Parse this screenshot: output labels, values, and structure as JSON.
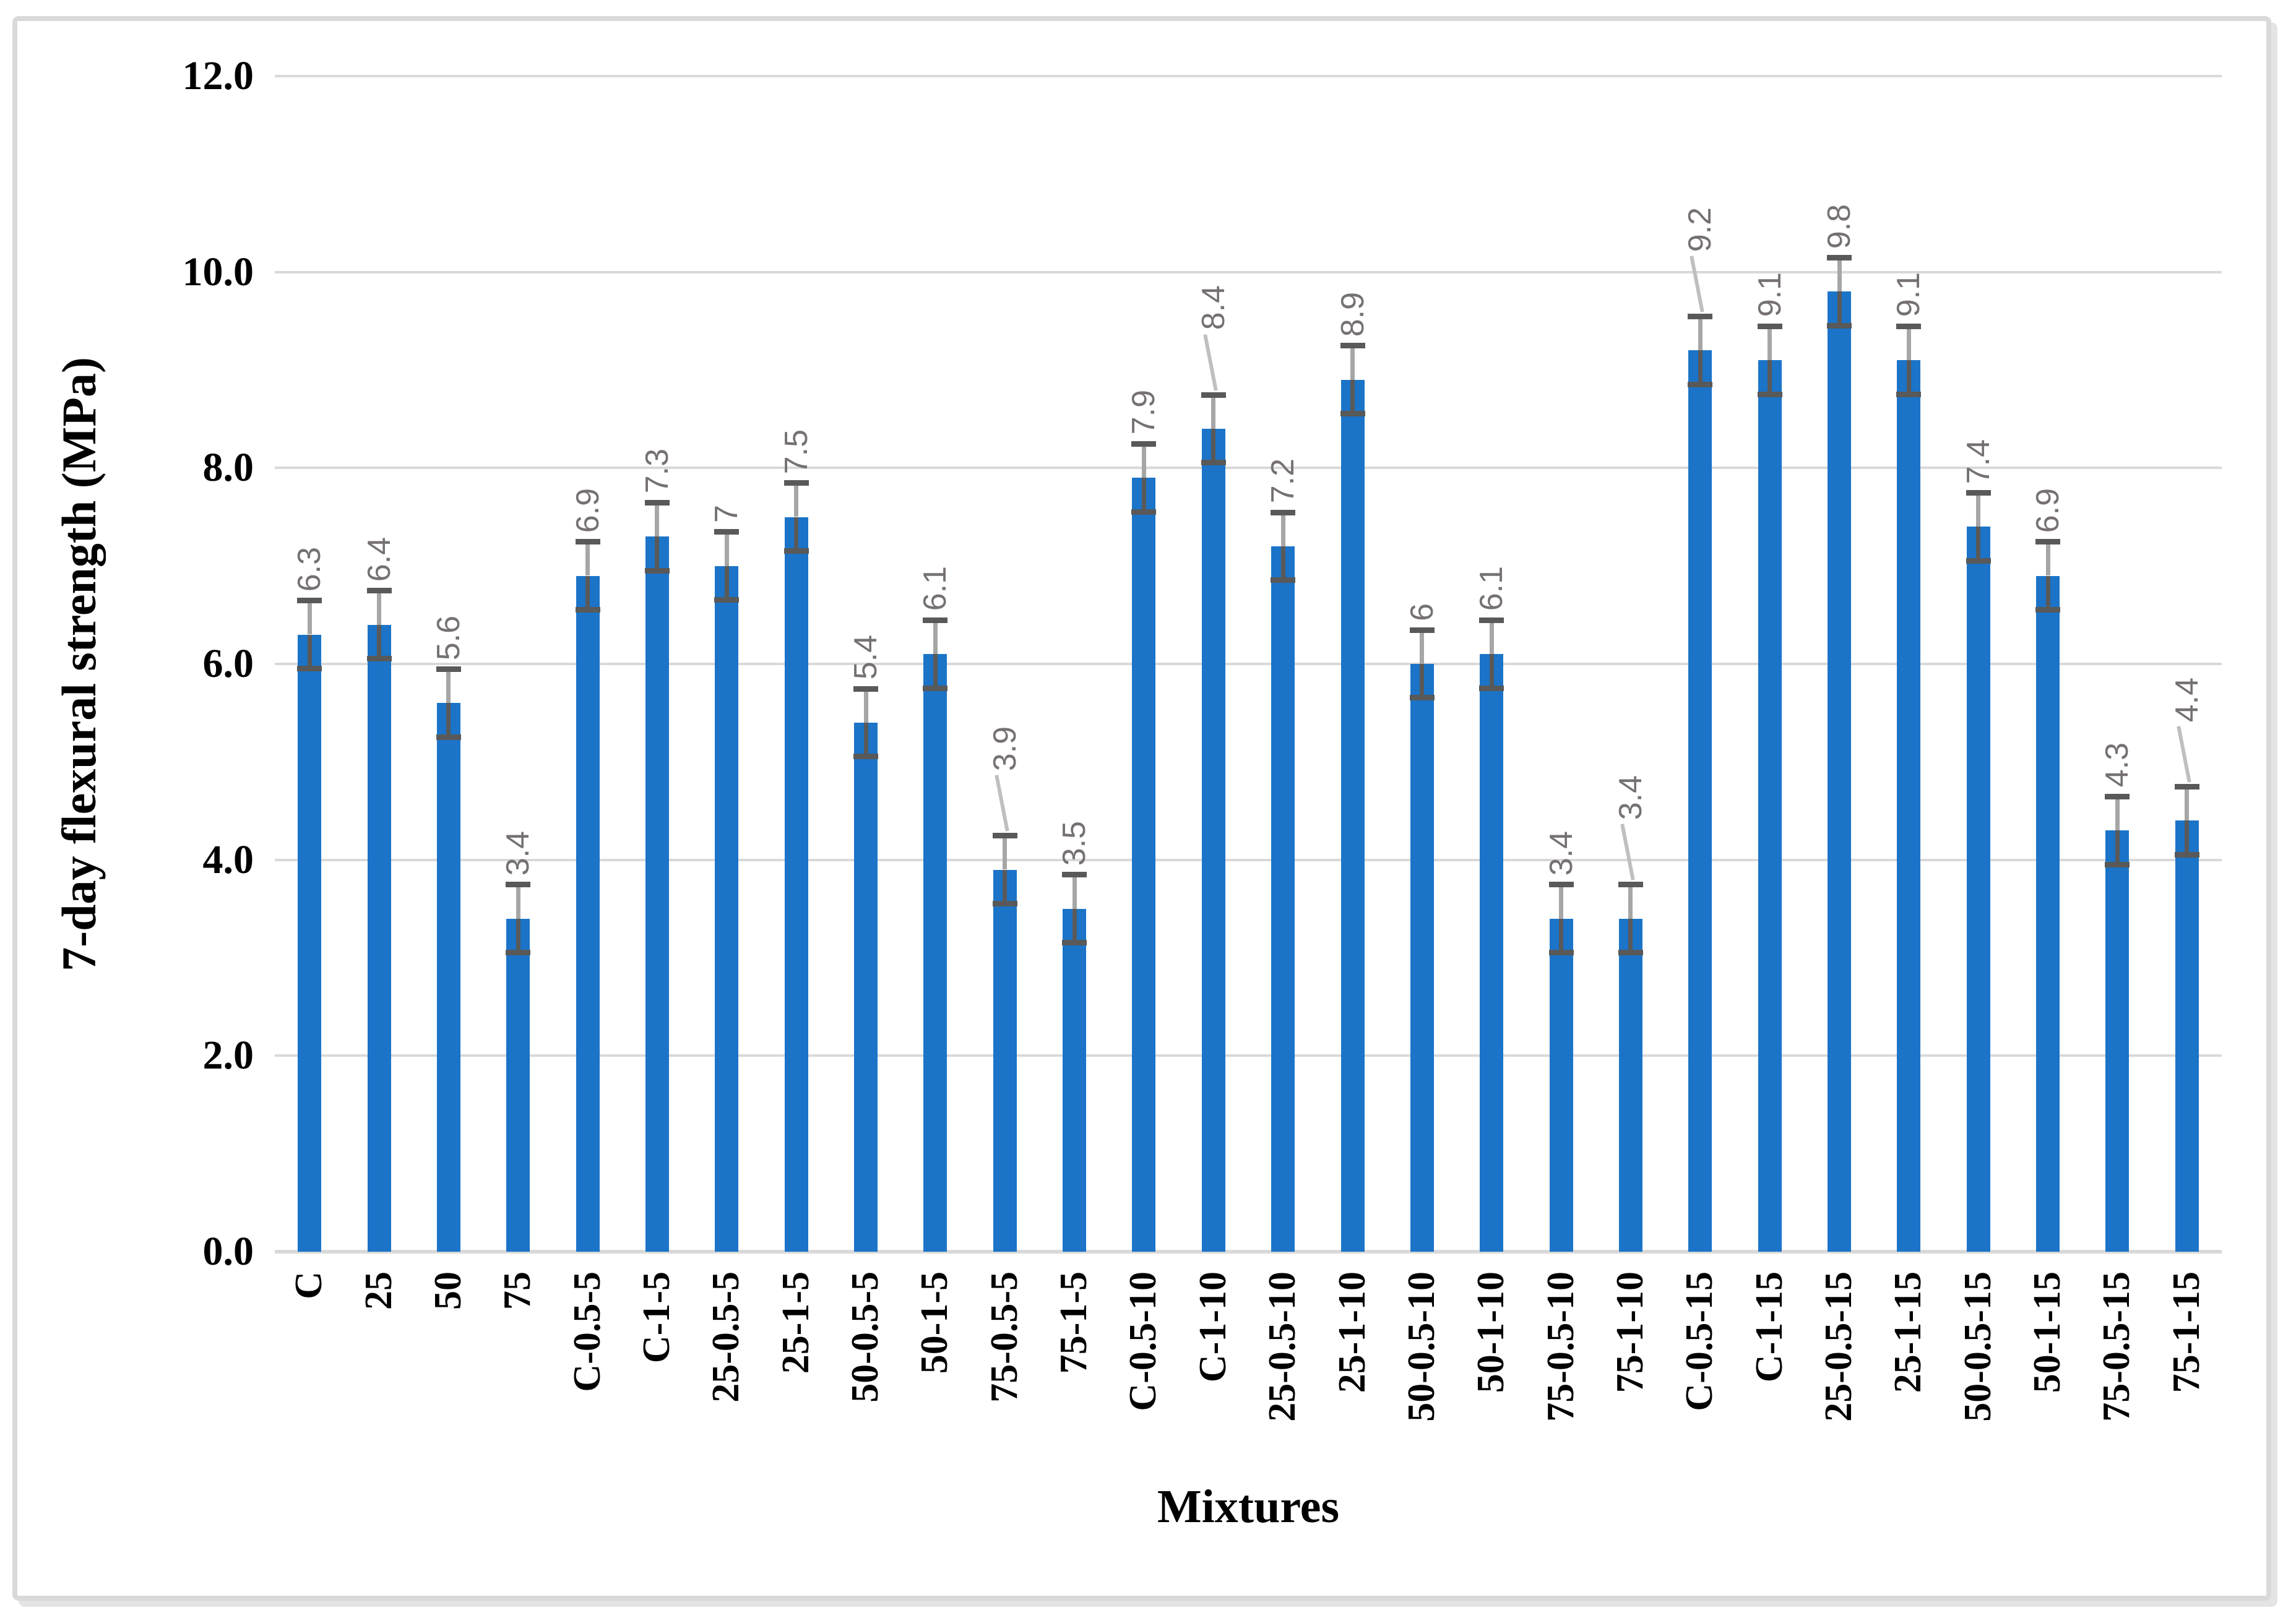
{
  "chart_data": {
    "type": "bar",
    "title": "",
    "xlabel": "Mixtures",
    "ylabel": "7-day flexural strength (MPa)",
    "categories": [
      "C",
      "25",
      "50",
      "75",
      "C-0.5-5",
      "C-1-5",
      "25-0.5-5",
      "25-1-5",
      "50-0.5-5",
      "50-1-5",
      "75-0.5-5",
      "75-1-5",
      "C-0.5-10",
      "C-1-10",
      "25-0.5-10",
      "25-1-10",
      "50-0.5-10",
      "50-1-10",
      "75-0.5-10",
      "75-1-10",
      "C-0.5-15",
      "C-1-15",
      "25-0.5-15",
      "25-1-15",
      "50-0.5-15",
      "50-1-15",
      "75-0.5-15",
      "75-1-15"
    ],
    "values": [
      6.3,
      6.4,
      5.6,
      3.4,
      6.9,
      7.3,
      7,
      7.5,
      5.4,
      6.1,
      3.9,
      3.5,
      7.9,
      8.4,
      7.2,
      8.9,
      6,
      6.1,
      3.4,
      3.4,
      9.2,
      9.1,
      9.8,
      9.1,
      7.4,
      6.9,
      4.3,
      4.4
    ],
    "value_labels": [
      "6.3",
      "6.4",
      "5.6",
      "3.4",
      "6.9",
      "7.3",
      "7",
      "7.5",
      "5.4",
      "6.1",
      "3.9",
      "3.5",
      "7.9",
      "8.4",
      "7.2",
      "8.9",
      "6",
      "6.1",
      "3.4",
      "3.4",
      "9.2",
      "9.1",
      "9.8",
      "9.1",
      "7.4",
      "6.9",
      "4.3",
      "4.4"
    ],
    "error_bar": 0.35,
    "labels_with_leader_line": [
      10,
      13,
      19,
      20,
      27
    ],
    "ylim": [
      0,
      12
    ],
    "ytick_step": 2,
    "ytick_labels": [
      "0.0",
      "2.0",
      "4.0",
      "6.0",
      "8.0",
      "10.0",
      "12.0"
    ],
    "grid": "horizontal",
    "legend": "none",
    "bar_color": "#1B74C8",
    "error_line_color": "#A6A6A6",
    "error_cap_color": "#595959",
    "gridline_color": "#D9D9D9",
    "value_label_color": "#767171",
    "axis_text_color": "#000000",
    "frame_color": "#D9D9D9"
  }
}
